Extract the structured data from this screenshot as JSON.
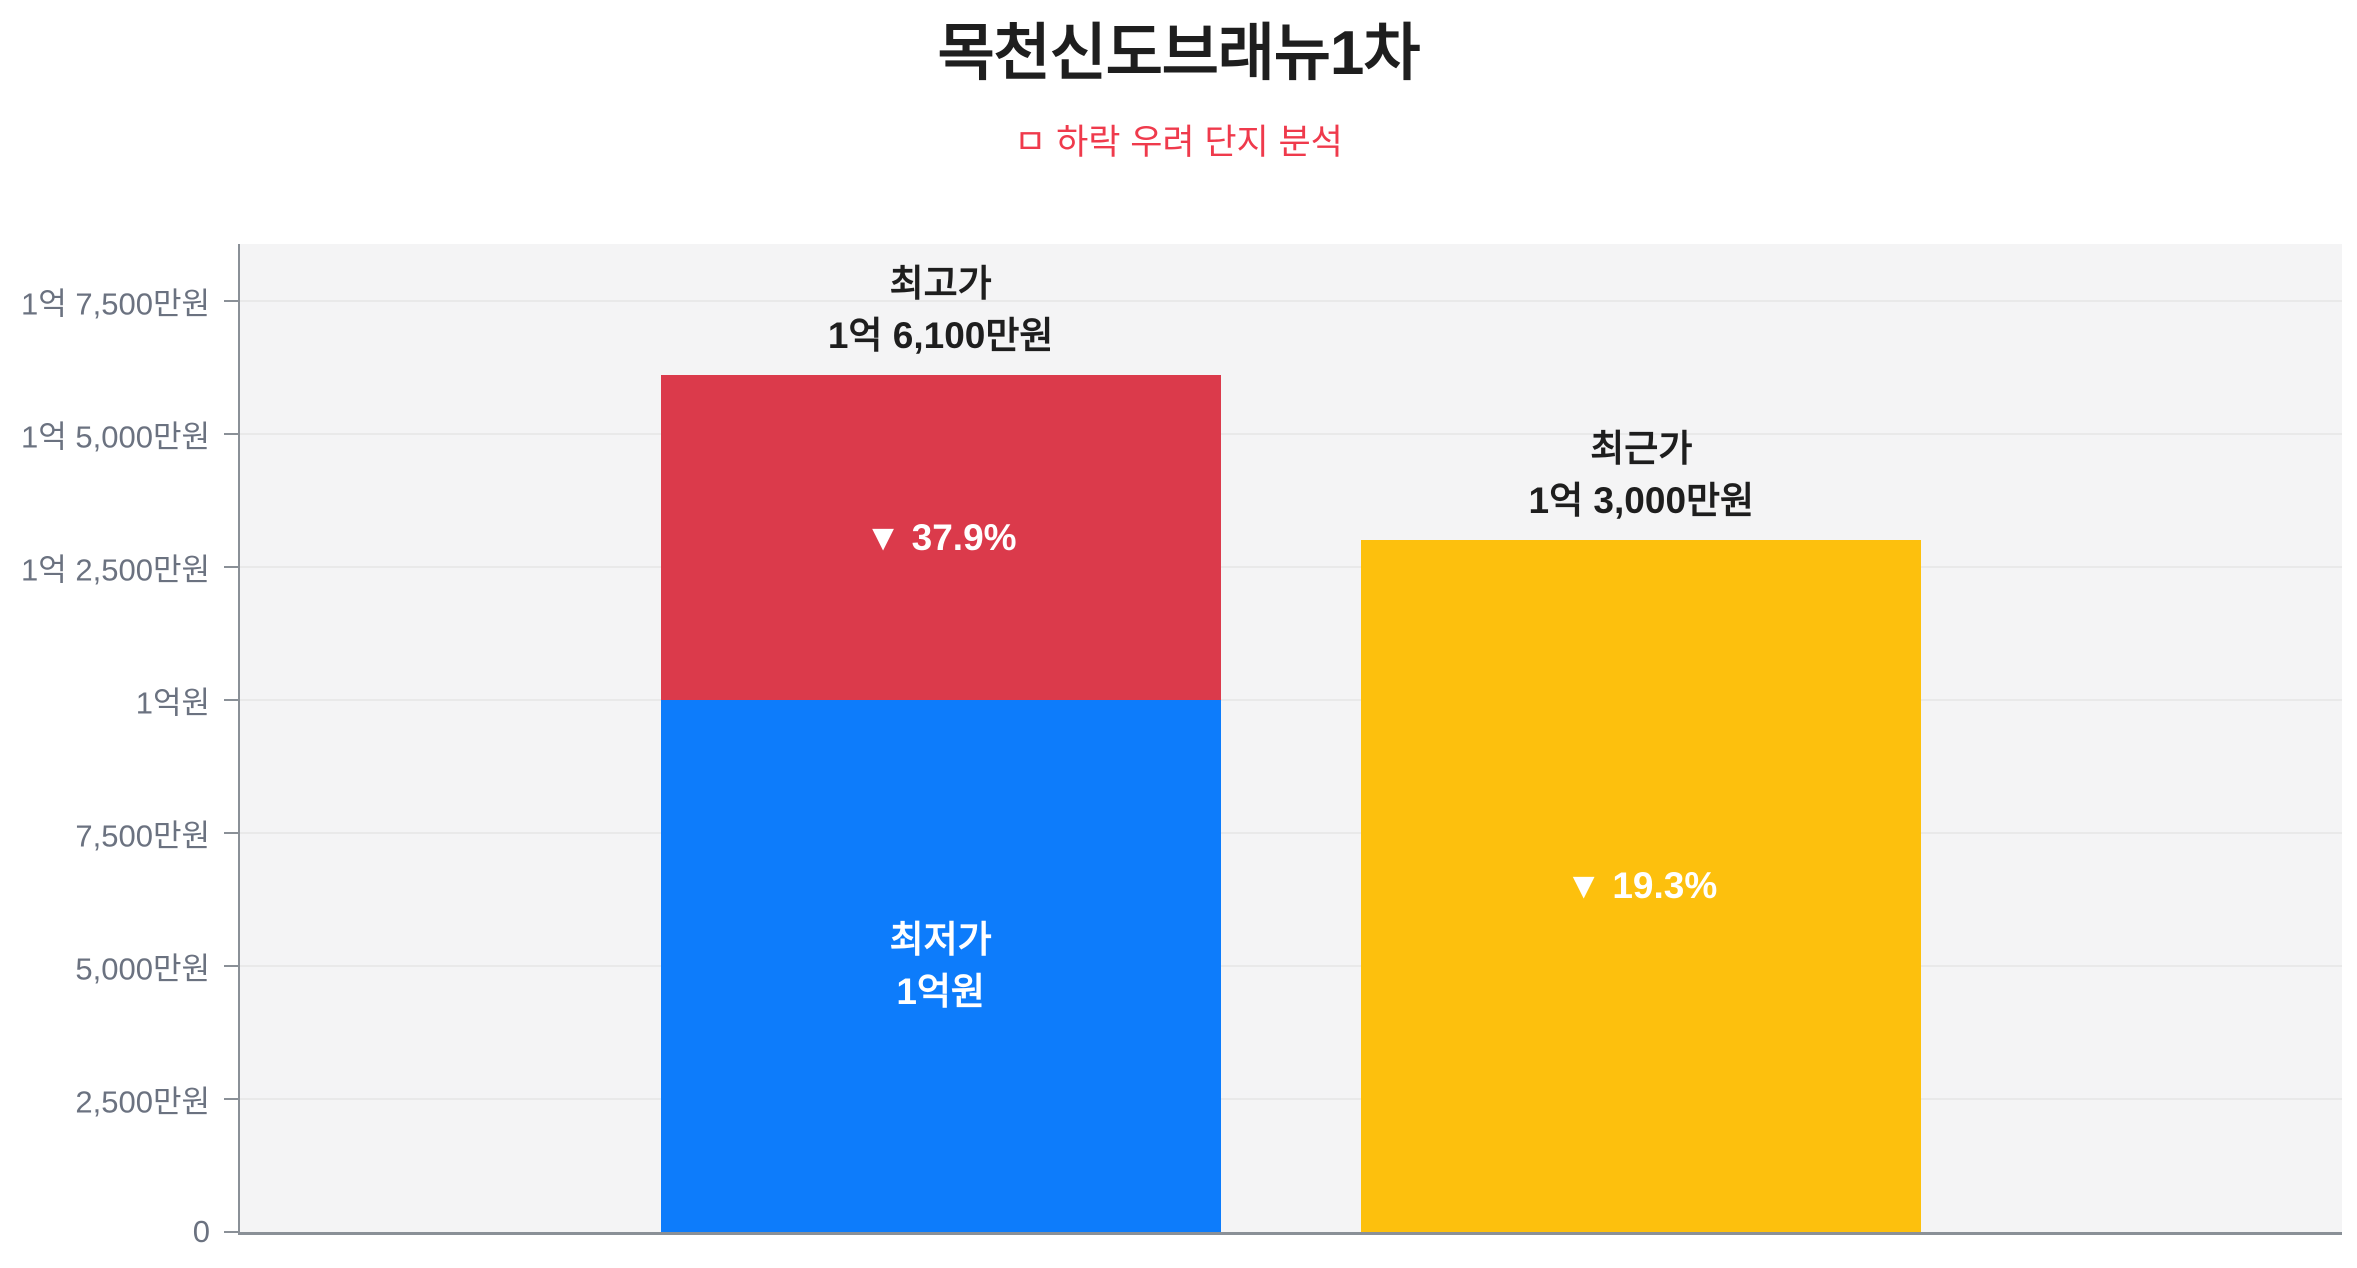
{
  "header": {
    "title": "목천신도브래뉴1차",
    "title_color": "#1e1e1e",
    "subtitle": "ㅁ 하락 우려 단지 분석",
    "subtitle_color": "#ef3a4c"
  },
  "chart_data": {
    "type": "bar",
    "title": "목천신도브래뉴1차",
    "subtitle": "ㅁ 하락 우려 단지 분석",
    "unit": "만원",
    "ylim": [
      0,
      18570
    ],
    "grid": true,
    "colors": {
      "plot_bg": "#f4f4f5",
      "gridline": "#e9e9e9",
      "axis": "#8a9097",
      "tick_text": "#6b7280",
      "label_text": "#1e1e1e",
      "low_bar": "#0d7cfb",
      "drop_bar": "#db3a4b",
      "recent_bar": "#fdc00d"
    },
    "yticks": [
      {
        "value": 0,
        "label": "0"
      },
      {
        "value": 2500,
        "label": "2,500만원"
      },
      {
        "value": 5000,
        "label": "5,000만원"
      },
      {
        "value": 7500,
        "label": "7,500만원"
      },
      {
        "value": 10000,
        "label": "1억원"
      },
      {
        "value": 12500,
        "label": "1억 2,500만원"
      },
      {
        "value": 15000,
        "label": "1억 5,000만원"
      },
      {
        "value": 17500,
        "label": "1억 7,500만원"
      }
    ],
    "bars": [
      {
        "name": "highest-price-bar",
        "top_label": [
          "최고가",
          "1억 6,100만원"
        ],
        "total": 16100,
        "segments": [
          {
            "name": "lowest-price-segment",
            "from": 0,
            "to": 10000,
            "color_key": "low_bar",
            "inner_label": [
              "최저가",
              "1억원"
            ]
          },
          {
            "name": "drop-segment",
            "from": 10000,
            "to": 16100,
            "color_key": "drop_bar",
            "inner_label": [
              "▼  37.9%"
            ]
          }
        ]
      },
      {
        "name": "recent-price-bar",
        "top_label": [
          "최근가",
          "1억 3,000만원"
        ],
        "total": 13000,
        "segments": [
          {
            "name": "recent-price-segment",
            "from": 0,
            "to": 13000,
            "color_key": "recent_bar",
            "inner_label": [
              "▼  19.3%"
            ]
          }
        ]
      }
    ]
  }
}
